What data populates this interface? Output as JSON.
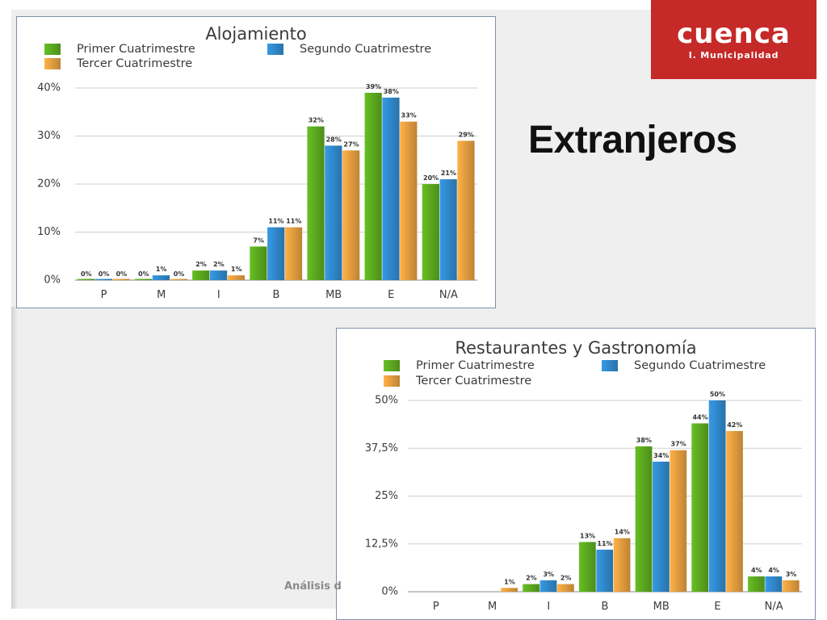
{
  "slide": {
    "heading": "Extranjeros",
    "footer_text": "Análisis d"
  },
  "logo": {
    "name": "CUENCA",
    "subtitle": "I. Municipalidad",
    "bg_color": "#c52a28"
  },
  "series_colors": {
    "Primer Cuatrimestre": "#5aa61e",
    "Segundo Cuatrimestre": "#2f86c8",
    "Tercer Cuatrimestre": "#e09a3e"
  },
  "chart_data": [
    {
      "type": "bar",
      "title": "Alojamiento",
      "categories": [
        "P",
        "M",
        "I",
        "B",
        "MB",
        "E",
        "N/A"
      ],
      "ylim": [
        0,
        40
      ],
      "yticks": [
        0,
        10,
        20,
        30,
        40
      ],
      "ytick_labels": [
        "0%",
        "10%",
        "20%",
        "30%",
        "40%"
      ],
      "grid": true,
      "legend_position": "top",
      "series": [
        {
          "name": "Primer Cuatrimestre",
          "values": [
            0,
            0,
            2,
            7,
            32,
            39,
            20
          ],
          "labels": [
            "0%",
            "0%",
            "2%",
            "7%",
            "32%",
            "39%",
            "20%"
          ]
        },
        {
          "name": "Segundo Cuatrimestre",
          "values": [
            0,
            1,
            2,
            11,
            28,
            38,
            21
          ],
          "labels": [
            "0%",
            "1%",
            "2%",
            "11%",
            "28%",
            "38%",
            "21%"
          ]
        },
        {
          "name": "Tercer Cuatrimestre",
          "values": [
            0,
            0,
            1,
            11,
            27,
            33,
            29
          ],
          "labels": [
            "0%",
            "0%",
            "1%",
            "11%",
            "27%",
            "33%",
            "29%"
          ]
        }
      ]
    },
    {
      "type": "bar",
      "title": "Restaurantes y Gastronomía",
      "categories": [
        "P",
        "M",
        "I",
        "B",
        "MB",
        "E",
        "N/A"
      ],
      "ylim": [
        0,
        50
      ],
      "yticks": [
        0,
        12.5,
        25,
        37.5,
        50
      ],
      "ytick_labels": [
        "0%",
        "12,5%",
        "25%",
        "37,5%",
        "50%"
      ],
      "grid": true,
      "legend_position": "top",
      "series": [
        {
          "name": "Primer Cuatrimestre",
          "values": [
            null,
            null,
            2,
            13,
            38,
            44,
            4
          ],
          "labels": [
            "",
            "",
            "2%",
            "13%",
            "38%",
            "44%",
            "4%"
          ]
        },
        {
          "name": "Segundo Cuatrimestre",
          "values": [
            null,
            null,
            3,
            11,
            34,
            50,
            4
          ],
          "labels": [
            "",
            "",
            "3%",
            "11%",
            "34%",
            "50%",
            "4%"
          ]
        },
        {
          "name": "Tercer Cuatrimestre",
          "values": [
            null,
            1,
            2,
            14,
            37,
            42,
            3
          ],
          "labels": [
            "",
            "1%",
            "2%",
            "14%",
            "37%",
            "42%",
            "3%"
          ]
        }
      ]
    }
  ]
}
